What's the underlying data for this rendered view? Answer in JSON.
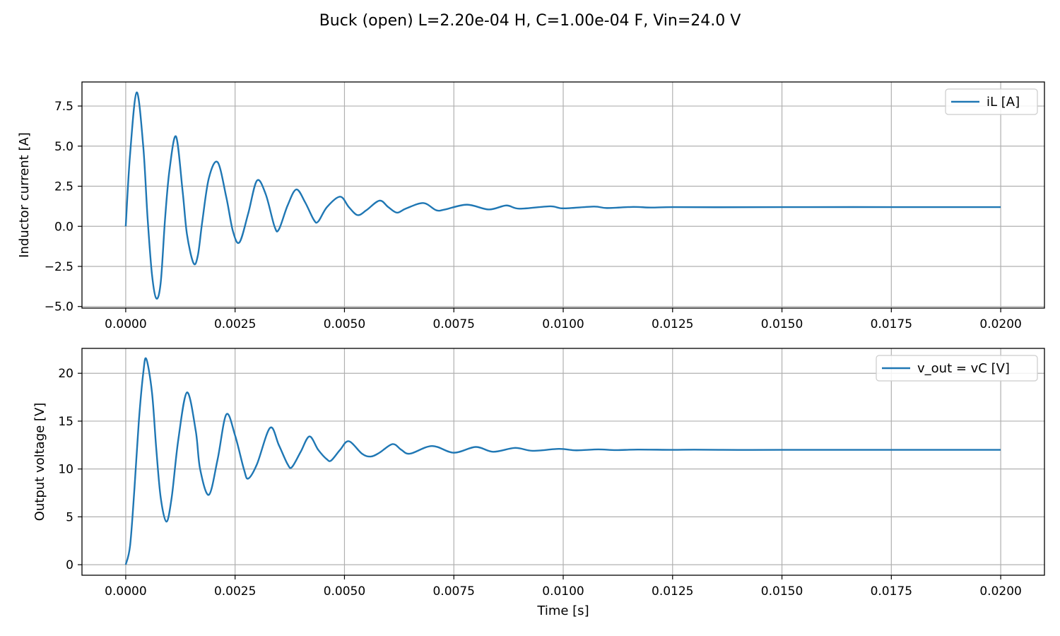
{
  "suptitle": "Buck (open)  L=2.20e-04 H, C=1.00e-04 F, Vin=24.0 V",
  "chart_data": [
    {
      "type": "line",
      "id": "top",
      "title": "",
      "xlabel": "",
      "ylabel": "Inductor current [A]",
      "xlim": [
        -0.001,
        0.021
      ],
      "ylim": [
        -5.1,
        9.0
      ],
      "xticks": [
        0.0,
        0.0025,
        0.005,
        0.0075,
        0.01,
        0.0125,
        0.015,
        0.0175,
        0.02
      ],
      "xtick_labels": [
        "0.0000",
        "0.0025",
        "0.0050",
        "0.0075",
        "0.0100",
        "0.0125",
        "0.0150",
        "0.0175",
        "0.0200"
      ],
      "yticks": [
        -5.0,
        -2.5,
        0.0,
        2.5,
        5.0,
        7.5
      ],
      "ytick_labels": [
        "−5.0",
        "−2.5",
        "0.0",
        "2.5",
        "5.0",
        "7.5"
      ],
      "grid": true,
      "legend": "top-right",
      "color": "#1f77b4",
      "series": [
        {
          "name": "iL [A]",
          "x": [
            0.0,
            0.0001,
            0.00025,
            0.0004,
            0.0005,
            0.0006,
            0.0007,
            0.0008,
            0.0009,
            0.001,
            0.00115,
            0.0013,
            0.0014,
            0.00155,
            0.00165,
            0.00175,
            0.0019,
            0.0021,
            0.0023,
            0.00245,
            0.0026,
            0.0028,
            0.003,
            0.0032,
            0.0034,
            0.0035,
            0.0037,
            0.0039,
            0.0041,
            0.0043,
            0.0044,
            0.0046,
            0.0049,
            0.0051,
            0.0053,
            0.0055,
            0.0058,
            0.006,
            0.0062,
            0.0064,
            0.0068,
            0.0071,
            0.0073,
            0.0078,
            0.0083,
            0.0087,
            0.009,
            0.0097,
            0.01,
            0.0107,
            0.011,
            0.0116,
            0.012,
            0.0125,
            0.0135,
            0.015,
            0.0175,
            0.02
          ],
          "y": [
            0.0,
            4.5,
            8.35,
            5.0,
            0.5,
            -3.0,
            -4.5,
            -3.5,
            0.5,
            3.5,
            5.6,
            2.2,
            -0.5,
            -2.3,
            -1.8,
            0.3,
            3.0,
            4.0,
            1.8,
            -0.3,
            -1.0,
            0.8,
            2.85,
            2.0,
            0.0,
            -0.2,
            1.3,
            2.3,
            1.5,
            0.4,
            0.3,
            1.2,
            1.85,
            1.2,
            0.7,
            1.0,
            1.6,
            1.2,
            0.85,
            1.1,
            1.45,
            1.0,
            1.05,
            1.35,
            1.05,
            1.3,
            1.1,
            1.25,
            1.12,
            1.23,
            1.14,
            1.21,
            1.17,
            1.2,
            1.19,
            1.2,
            1.2,
            1.2
          ]
        }
      ]
    },
    {
      "type": "line",
      "id": "bottom",
      "title": "",
      "xlabel": "Time [s]",
      "ylabel": "Output voltage [V]",
      "xlim": [
        -0.001,
        0.021
      ],
      "ylim": [
        -1.1,
        22.6
      ],
      "xticks": [
        0.0,
        0.0025,
        0.005,
        0.0075,
        0.01,
        0.0125,
        0.015,
        0.0175,
        0.02
      ],
      "xtick_labels": [
        "0.0000",
        "0.0025",
        "0.0050",
        "0.0075",
        "0.0100",
        "0.0125",
        "0.0150",
        "0.0175",
        "0.0200"
      ],
      "yticks": [
        0,
        5,
        10,
        15,
        20
      ],
      "ytick_labels": [
        "0",
        "5",
        "10",
        "15",
        "20"
      ],
      "grid": true,
      "legend": "top-right",
      "color": "#1f77b4",
      "series": [
        {
          "name": "v_out = vC [V]",
          "x": [
            0.0,
            0.0001,
            0.0002,
            0.0003,
            0.0004,
            0.00047,
            0.0006,
            0.0007,
            0.0008,
            0.00093,
            0.00105,
            0.0012,
            0.0014,
            0.0016,
            0.0017,
            0.0019,
            0.0021,
            0.0023,
            0.0025,
            0.0027,
            0.0028,
            0.003,
            0.0033,
            0.0035,
            0.0037,
            0.0038,
            0.004,
            0.0042,
            0.0044,
            0.0046,
            0.0047,
            0.0049,
            0.0051,
            0.0054,
            0.0056,
            0.0058,
            0.0061,
            0.0063,
            0.0065,
            0.007,
            0.0075,
            0.008,
            0.0084,
            0.0089,
            0.0093,
            0.0099,
            0.0103,
            0.0108,
            0.0112,
            0.0117,
            0.0125,
            0.013,
            0.014,
            0.015,
            0.0175,
            0.02
          ],
          "y": [
            0.0,
            2.0,
            8.0,
            15.0,
            20.0,
            21.5,
            18.0,
            12.0,
            7.0,
            4.5,
            7.0,
            13.0,
            18.0,
            14.0,
            10.0,
            7.3,
            11.0,
            15.7,
            13.5,
            10.0,
            9.0,
            10.5,
            14.3,
            12.5,
            10.5,
            10.2,
            11.8,
            13.4,
            12.0,
            11.0,
            10.9,
            12.0,
            12.9,
            11.6,
            11.3,
            11.7,
            12.6,
            12.0,
            11.6,
            12.4,
            11.7,
            12.3,
            11.8,
            12.2,
            11.9,
            12.1,
            11.95,
            12.05,
            11.97,
            12.03,
            12.0,
            12.02,
            11.99,
            12.0,
            12.0,
            12.0
          ]
        }
      ]
    }
  ]
}
